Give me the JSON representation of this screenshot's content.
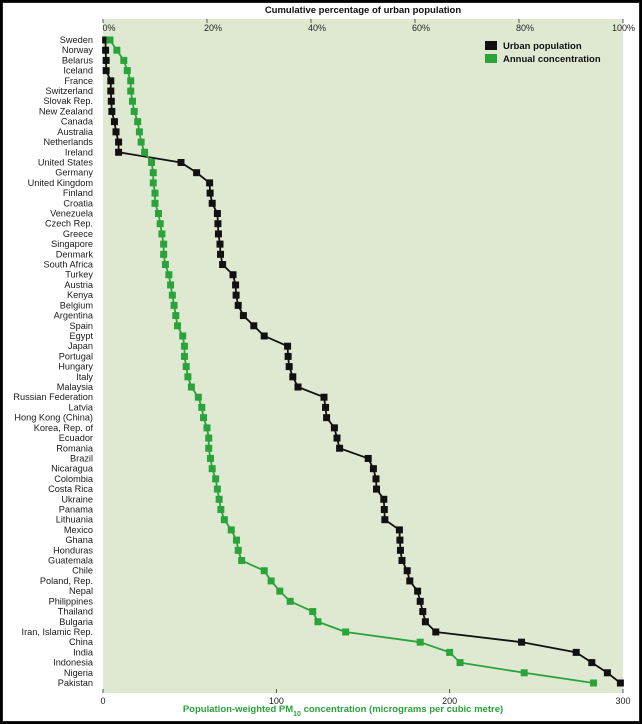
{
  "chart_data": {
    "type": "line",
    "top_axis": {
      "title": "Cumulative percentage of urban population",
      "ticks": [
        "0%",
        "20%",
        "40%",
        "60%",
        "80%",
        "100%"
      ],
      "range": [
        0,
        100
      ]
    },
    "bottom_axis": {
      "title_main": "Population-weighted PM",
      "title_sub": "10",
      "title_rest": " concentration (micrograms per cubic metre)",
      "ticks": [
        "0",
        "100",
        "200",
        "300"
      ],
      "range": [
        0,
        300
      ]
    },
    "legend": {
      "placement": "top-right",
      "items": [
        {
          "label": "Urban population",
          "color": "#111111"
        },
        {
          "label": "Annual concentration",
          "color": "#2aa33a"
        }
      ]
    },
    "colors": {
      "plot_bg": "#dfe9d2",
      "urban": "#111111",
      "concentration": "#2aa33a"
    },
    "categories": [
      "Sweden",
      "Norway",
      "Belarus",
      "Iceland",
      "France",
      "Switzerland",
      "Slovak Rep.",
      "New Zealand",
      "Canada",
      "Australia",
      "Netherlands",
      "Ireland",
      "United States",
      "Germany",
      "United Kingdom",
      "Finland",
      "Croatia",
      "Venezuela",
      "Czech Rep.",
      "Greece",
      "Singapore",
      "Denmark",
      "South Africa",
      "Turkey",
      "Austria",
      "Kenya",
      "Belgium",
      "Argentina",
      "Spain",
      "Egypt",
      "Japan",
      "Portugal",
      "Hungary",
      "Italy",
      "Malaysia",
      "Russian Federation",
      "Latvia",
      "Hong Kong (China)",
      "Korea, Rep. of",
      "Ecuador",
      "Romania",
      "Brazil",
      "Nicaragua",
      "Colombia",
      "Costa Rica",
      "Ukraine",
      "Panama",
      "Lithuania",
      "Mexico",
      "Ghana",
      "Honduras",
      "Guatemala",
      "Chile",
      "Poland, Rep.",
      "Nepal",
      "Philippines",
      "Thailand",
      "Bulgaria",
      "Iran, Islamic Rep.",
      "China",
      "India",
      "Indonesia",
      "Nigeria",
      "Pakistan"
    ],
    "series": [
      {
        "name": "Urban population",
        "axis": "top",
        "unit": "percent",
        "values": [
          0.5,
          0.5,
          0.6,
          0.6,
          1.5,
          1.5,
          1.6,
          1.7,
          2.2,
          2.5,
          3,
          3,
          15,
          18,
          20.5,
          20.6,
          21,
          22,
          22.1,
          22.2,
          22.5,
          22.6,
          23,
          25,
          25.5,
          25.6,
          26,
          27,
          29,
          31,
          35.5,
          35.6,
          35.8,
          36.5,
          37.5,
          42.5,
          42.8,
          43,
          44.5,
          45,
          45.5,
          51,
          52,
          52.5,
          52.6,
          54,
          54.1,
          54.2,
          57,
          57.1,
          57.2,
          57.5,
          58.5,
          59,
          60.5,
          61,
          61.5,
          62,
          64,
          80.5,
          91,
          94,
          97,
          99.5
        ]
      },
      {
        "name": "Annual concentration",
        "axis": "bottom",
        "unit": "micrograms per cubic metre",
        "values": [
          4,
          8,
          12,
          14,
          16,
          16,
          17,
          18,
          20,
          21,
          22,
          24,
          28,
          29,
          29,
          30,
          30,
          32,
          33,
          34,
          35,
          35,
          36,
          38,
          39,
          40,
          41,
          42,
          43,
          46,
          47,
          47,
          48,
          49,
          51,
          55,
          57,
          58,
          60,
          61,
          61,
          62,
          63,
          65,
          66,
          67,
          68,
          70,
          74,
          77,
          78,
          80,
          93,
          97,
          102,
          108,
          121,
          124,
          140,
          183,
          200,
          206,
          243,
          283
        ]
      }
    ]
  }
}
